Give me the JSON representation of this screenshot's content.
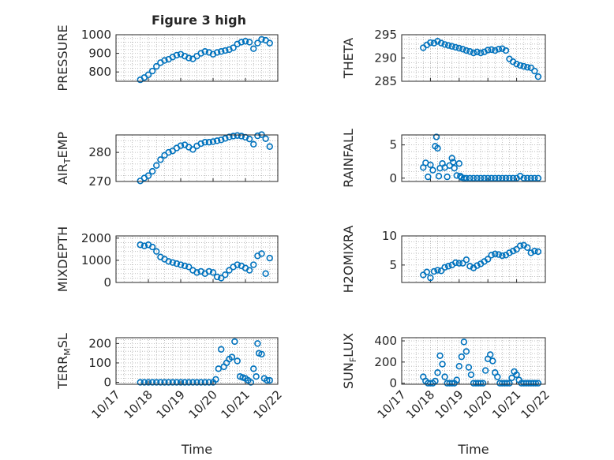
{
  "figure": {
    "title": "Figure 3 high",
    "marker_color": "#0072bd"
  },
  "chart_data": [
    {
      "id": "pressure",
      "type": "scatter",
      "title": "Figure 3 high",
      "ylabel": "PRESSURE",
      "ylabel_sub": null,
      "xlabel": "",
      "xlim": [
        "10/17",
        "10/22"
      ],
      "ylim": [
        750,
        1000
      ],
      "yticks": [
        800,
        900,
        1000
      ],
      "grid": true,
      "x": [
        "10/17 18:00",
        "10/17 21:00",
        "10/18 00:00",
        "10/18 03:00",
        "10/18 06:00",
        "10/18 09:00",
        "10/18 12:00",
        "10/18 15:00",
        "10/18 18:00",
        "10/18 21:00",
        "10/19 00:00",
        "10/19 03:00",
        "10/19 06:00",
        "10/19 09:00",
        "10/19 12:00",
        "10/19 15:00",
        "10/19 18:00",
        "10/19 21:00",
        "10/20 00:00",
        "10/20 03:00",
        "10/20 06:00",
        "10/20 09:00",
        "10/20 12:00",
        "10/20 15:00",
        "10/20 18:00",
        "10/20 21:00",
        "10/21 00:00",
        "10/21 03:00",
        "10/21 06:00",
        "10/21 09:00",
        "10/21 12:00",
        "10/21 15:00",
        "10/21 18:00"
      ],
      "y": [
        758,
        770,
        785,
        805,
        830,
        850,
        862,
        868,
        880,
        890,
        895,
        885,
        875,
        870,
        885,
        900,
        910,
        905,
        895,
        905,
        910,
        915,
        920,
        930,
        950,
        960,
        965,
        960,
        925,
        955,
        975,
        970,
        955
      ]
    },
    {
      "id": "theta",
      "type": "scatter",
      "title": "",
      "ylabel": "THETA",
      "ylabel_sub": null,
      "xlabel": "",
      "xlim": [
        "10/17",
        "10/22"
      ],
      "ylim": [
        285,
        295
      ],
      "yticks": [
        285,
        290,
        295
      ],
      "grid": true,
      "x": [
        "10/17 18:00",
        "10/17 21:00",
        "10/18 00:00",
        "10/18 03:00",
        "10/18 06:00",
        "10/18 09:00",
        "10/18 12:00",
        "10/18 15:00",
        "10/18 18:00",
        "10/18 21:00",
        "10/19 00:00",
        "10/19 03:00",
        "10/19 06:00",
        "10/19 09:00",
        "10/19 12:00",
        "10/19 15:00",
        "10/19 18:00",
        "10/19 21:00",
        "10/20 00:00",
        "10/20 03:00",
        "10/20 06:00",
        "10/20 09:00",
        "10/20 12:00",
        "10/20 15:00",
        "10/20 18:00",
        "10/20 21:00",
        "10/21 00:00",
        "10/21 03:00",
        "10/21 06:00",
        "10/21 09:00",
        "10/21 12:00",
        "10/21 15:00",
        "10/21 18:00"
      ],
      "y": [
        292.2,
        292.8,
        293.3,
        293.2,
        293.6,
        293.2,
        292.9,
        292.7,
        292.5,
        292.3,
        292.1,
        291.9,
        291.6,
        291.4,
        291.1,
        291.3,
        291.1,
        291.3,
        291.7,
        291.8,
        291.6,
        291.9,
        292.0,
        291.6,
        289.8,
        289.2,
        288.7,
        288.4,
        288.2,
        288.0,
        287.9,
        287.2,
        286.0
      ]
    },
    {
      "id": "air-temp",
      "type": "scatter",
      "title": "",
      "ylabel": "AIR_TEMP",
      "ylabel_main": "AIR",
      "ylabel_sub": "T",
      "ylabel_rest": "EMP",
      "xlabel": "",
      "xlim": [
        "10/17",
        "10/22"
      ],
      "ylim": [
        270,
        286
      ],
      "yticks": [
        270,
        280
      ],
      "grid": true,
      "x": [
        "10/17 18:00",
        "10/17 21:00",
        "10/18 00:00",
        "10/18 03:00",
        "10/18 06:00",
        "10/18 09:00",
        "10/18 12:00",
        "10/18 15:00",
        "10/18 18:00",
        "10/18 21:00",
        "10/19 00:00",
        "10/19 03:00",
        "10/19 06:00",
        "10/19 09:00",
        "10/19 12:00",
        "10/19 15:00",
        "10/19 18:00",
        "10/19 21:00",
        "10/20 00:00",
        "10/20 03:00",
        "10/20 06:00",
        "10/20 09:00",
        "10/20 12:00",
        "10/20 15:00",
        "10/20 18:00",
        "10/20 21:00",
        "10/21 00:00",
        "10/21 03:00",
        "10/21 06:00",
        "10/21 09:00",
        "10/21 12:00",
        "10/21 15:00",
        "10/21 18:00"
      ],
      "y": [
        270.2,
        271.2,
        272.0,
        273.5,
        275.5,
        277.5,
        279.0,
        280.0,
        280.5,
        281.5,
        282.3,
        282.6,
        281.8,
        281.0,
        282.2,
        283.0,
        283.5,
        283.5,
        283.7,
        284.0,
        284.3,
        284.8,
        285.3,
        285.6,
        285.8,
        285.6,
        285.2,
        284.6,
        282.8,
        285.7,
        286.1,
        284.7,
        282.0
      ]
    },
    {
      "id": "rainfall",
      "type": "scatter",
      "title": "",
      "ylabel": "RAINFALL",
      "ylabel_sub": null,
      "xlabel": "",
      "xlim": [
        "10/17",
        "10/22"
      ],
      "ylim": [
        -0.5,
        6.5
      ],
      "yticks": [
        0,
        5
      ],
      "grid": true,
      "x": [
        "10/17 18:00",
        "10/17 20:00",
        "10/17 22:00",
        "10/18 00:00",
        "10/18 02:00",
        "10/18 04:00",
        "10/18 05:00",
        "10/18 06:00",
        "10/18 07:00",
        "10/18 08:00",
        "10/18 10:00",
        "10/18 12:00",
        "10/18 14:00",
        "10/18 16:00",
        "10/18 18:00",
        "10/18 19:00",
        "10/18 20:00",
        "10/18 22:00",
        "10/19 00:00",
        "10/19 01:00",
        "10/19 02:00",
        "10/19 04:00",
        "10/19 06:00",
        "10/19 09:00",
        "10/19 12:00",
        "10/19 15:00",
        "10/19 18:00",
        "10/19 21:00",
        "10/20 00:00",
        "10/20 03:00",
        "10/20 06:00",
        "10/20 09:00",
        "10/20 12:00",
        "10/20 15:00",
        "10/20 18:00",
        "10/20 21:00",
        "10/21 00:00",
        "10/21 03:00",
        "10/21 06:00",
        "10/21 09:00",
        "10/21 12:00",
        "10/21 15:00",
        "10/21 18:00"
      ],
      "y": [
        1.6,
        2.3,
        0.2,
        2.0,
        1.2,
        4.8,
        6.2,
        4.5,
        0.3,
        1.5,
        2.2,
        1.6,
        0.2,
        1.9,
        3.0,
        2.4,
        1.5,
        0.4,
        2.2,
        0.3,
        0.1,
        0,
        0,
        0,
        0,
        0,
        0,
        0,
        0,
        0,
        0,
        0,
        0,
        0,
        0,
        0,
        0,
        0.3,
        0,
        0,
        0,
        0,
        0
      ]
    },
    {
      "id": "mixdepth",
      "type": "scatter",
      "title": "",
      "ylabel": "MIXDEPTH",
      "ylabel_sub": null,
      "xlabel": "",
      "xlim": [
        "10/17",
        "10/22"
      ],
      "ylim": [
        0,
        2100
      ],
      "yticks": [
        0,
        1000,
        2000
      ],
      "grid": true,
      "x": [
        "10/17 18:00",
        "10/17 21:00",
        "10/18 00:00",
        "10/18 03:00",
        "10/18 06:00",
        "10/18 09:00",
        "10/18 12:00",
        "10/18 15:00",
        "10/18 18:00",
        "10/18 21:00",
        "10/19 00:00",
        "10/19 03:00",
        "10/19 06:00",
        "10/19 09:00",
        "10/19 12:00",
        "10/19 15:00",
        "10/19 18:00",
        "10/19 21:00",
        "10/20 00:00",
        "10/20 03:00",
        "10/20 06:00",
        "10/20 09:00",
        "10/20 12:00",
        "10/20 15:00",
        "10/20 18:00",
        "10/20 21:00",
        "10/21 00:00",
        "10/21 03:00",
        "10/21 06:00",
        "10/21 09:00",
        "10/21 12:00",
        "10/21 15:00",
        "10/21 18:00"
      ],
      "y": [
        1700,
        1650,
        1700,
        1600,
        1400,
        1150,
        1050,
        950,
        900,
        850,
        800,
        750,
        700,
        550,
        450,
        500,
        400,
        500,
        450,
        250,
        200,
        350,
        550,
        700,
        800,
        750,
        650,
        550,
        800,
        1200,
        1300,
        400,
        1100
      ]
    },
    {
      "id": "h2omixra",
      "type": "scatter",
      "title": "",
      "ylabel": "H2OMIXRA",
      "ylabel_sub": null,
      "xlabel": "",
      "xlim": [
        "10/17",
        "10/22"
      ],
      "ylim": [
        2,
        10
      ],
      "yticks": [
        5,
        10
      ],
      "grid": true,
      "x": [
        "10/17 18:00",
        "10/17 21:00",
        "10/18 00:00",
        "10/18 03:00",
        "10/18 06:00",
        "10/18 09:00",
        "10/18 12:00",
        "10/18 15:00",
        "10/18 18:00",
        "10/18 21:00",
        "10/19 00:00",
        "10/19 03:00",
        "10/19 06:00",
        "10/19 09:00",
        "10/19 12:00",
        "10/19 15:00",
        "10/19 18:00",
        "10/19 21:00",
        "10/20 00:00",
        "10/20 03:00",
        "10/20 06:00",
        "10/20 09:00",
        "10/20 12:00",
        "10/20 15:00",
        "10/20 18:00",
        "10/20 21:00",
        "10/21 00:00",
        "10/21 03:00",
        "10/21 06:00",
        "10/21 09:00",
        "10/21 12:00",
        "10/21 15:00",
        "10/21 18:00"
      ],
      "y": [
        3.3,
        3.8,
        2.8,
        3.9,
        4.1,
        4.0,
        4.6,
        4.8,
        5.0,
        5.4,
        5.3,
        5.3,
        5.9,
        4.8,
        4.5,
        4.9,
        5.2,
        5.6,
        6.0,
        6.7,
        6.9,
        6.8,
        6.6,
        6.7,
        7.1,
        7.4,
        7.7,
        8.3,
        8.4,
        8.0,
        7.1,
        7.4,
        7.3
      ]
    },
    {
      "id": "terr-msl",
      "type": "scatter",
      "title": "",
      "ylabel": "TERR_MSL",
      "ylabel_main": "TERR",
      "ylabel_sub": "M",
      "ylabel_rest": "SL",
      "xlabel": "Time",
      "xlim": [
        "10/17",
        "10/22"
      ],
      "ylim": [
        -10,
        230
      ],
      "yticks": [
        0,
        100,
        200
      ],
      "xticks": [
        "10/17",
        "10/18",
        "10/19",
        "10/20",
        "10/21",
        "10/22"
      ],
      "grid": true,
      "x": [
        "10/17 18:00",
        "10/17 21:00",
        "10/18 00:00",
        "10/18 03:00",
        "10/18 06:00",
        "10/18 09:00",
        "10/18 12:00",
        "10/18 15:00",
        "10/18 18:00",
        "10/18 21:00",
        "10/19 00:00",
        "10/19 03:00",
        "10/19 06:00",
        "10/19 09:00",
        "10/19 12:00",
        "10/19 15:00",
        "10/19 18:00",
        "10/19 21:00",
        "10/20 00:00",
        "10/20 02:00",
        "10/20 04:00",
        "10/20 06:00",
        "10/20 08:00",
        "10/20 10:00",
        "10/20 12:00",
        "10/20 14:00",
        "10/20 16:00",
        "10/20 18:00",
        "10/20 20:00",
        "10/20 22:00",
        "10/21 00:00",
        "10/21 02:00",
        "10/21 04:00",
        "10/21 06:00",
        "10/21 08:00",
        "10/21 09:00",
        "10/21 10:00",
        "10/21 12:00",
        "10/21 14:00",
        "10/21 16:00",
        "10/21 18:00"
      ],
      "y": [
        0,
        0,
        0,
        0,
        0,
        0,
        0,
        0,
        0,
        0,
        0,
        0,
        0,
        0,
        0,
        0,
        0,
        0,
        0,
        15,
        70,
        170,
        80,
        100,
        120,
        130,
        210,
        110,
        30,
        25,
        20,
        10,
        0,
        70,
        30,
        200,
        150,
        145,
        20,
        10,
        10
      ]
    },
    {
      "id": "sun-flux",
      "type": "scatter",
      "title": "",
      "ylabel": "SUN_FLUX",
      "ylabel_main": "SUN",
      "ylabel_sub": "F",
      "ylabel_rest": "LUX",
      "xlabel": "Time",
      "xlim": [
        "10/17",
        "10/22"
      ],
      "ylim": [
        -10,
        430
      ],
      "yticks": [
        0,
        200,
        400
      ],
      "xticks": [
        "10/17",
        "10/18",
        "10/19",
        "10/20",
        "10/21",
        "10/22"
      ],
      "grid": true,
      "x": [
        "10/17 18:00",
        "10/17 20:00",
        "10/17 22:00",
        "10/18 00:00",
        "10/18 02:00",
        "10/18 04:00",
        "10/18 06:00",
        "10/18 08:00",
        "10/18 10:00",
        "10/18 12:00",
        "10/18 14:00",
        "10/18 16:00",
        "10/18 18:00",
        "10/18 20:00",
        "10/18 22:00",
        "10/19 00:00",
        "10/19 02:00",
        "10/19 04:00",
        "10/19 06:00",
        "10/19 08:00",
        "10/19 10:00",
        "10/19 12:00",
        "10/19 14:00",
        "10/19 16:00",
        "10/19 18:00",
        "10/19 20:00",
        "10/19 22:00",
        "10/20 00:00",
        "10/20 02:00",
        "10/20 04:00",
        "10/20 06:00",
        "10/20 08:00",
        "10/20 10:00",
        "10/20 12:00",
        "10/20 14:00",
        "10/20 16:00",
        "10/20 18:00",
        "10/20 20:00",
        "10/20 22:00",
        "10/21 00:00",
        "10/21 02:00",
        "10/21 04:00",
        "10/21 06:00",
        "10/21 08:00",
        "10/21 10:00",
        "10/21 12:00",
        "10/21 14:00",
        "10/21 16:00",
        "10/21 18:00"
      ],
      "y": [
        60,
        20,
        0,
        0,
        0,
        20,
        100,
        260,
        180,
        60,
        0,
        0,
        0,
        0,
        30,
        160,
        250,
        390,
        300,
        150,
        80,
        0,
        0,
        0,
        0,
        0,
        120,
        230,
        270,
        210,
        100,
        60,
        0,
        0,
        0,
        0,
        0,
        50,
        110,
        80,
        30,
        0,
        0,
        0,
        0,
        0,
        0,
        0,
        0
      ]
    }
  ]
}
